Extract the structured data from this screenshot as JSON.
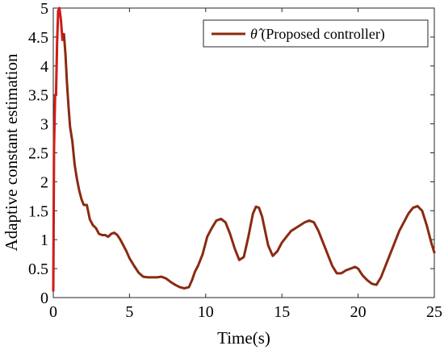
{
  "chart_data": {
    "type": "line",
    "title": "",
    "xlabel": "Time(s)",
    "ylabel": "Adaptive constant estimation",
    "xlim": [
      0,
      25
    ],
    "ylim": [
      0,
      5
    ],
    "xticks": [
      "0",
      "5",
      "10",
      "15",
      "20",
      "25"
    ],
    "yticks": [
      "0",
      "0.5",
      "1",
      "1.5",
      "2",
      "2.5",
      "3",
      "3.5",
      "4",
      "4.5",
      "5"
    ],
    "grid": false,
    "legend_position": "top-right",
    "series": [
      {
        "name": "θ̂ (Proposed controller)",
        "legend_symbol": "θ̂",
        "legend_text": " (Proposed controller)",
        "color": "#8b2a12",
        "initial_spike_color": "#e8141c",
        "x": [
          0.0,
          0.05,
          0.12,
          0.18,
          0.25,
          0.32,
          0.4,
          0.5,
          0.6,
          0.7,
          0.8,
          0.9,
          1.0,
          1.1,
          1.25,
          1.4,
          1.55,
          1.7,
          1.85,
          2.0,
          2.2,
          2.4,
          2.6,
          2.8,
          3.0,
          3.2,
          3.4,
          3.6,
          3.8,
          4.0,
          4.2,
          4.4,
          4.6,
          4.8,
          5.0,
          5.3,
          5.6,
          5.9,
          6.2,
          6.5,
          6.8,
          7.1,
          7.4,
          7.7,
          8.0,
          8.3,
          8.6,
          8.9,
          9.1,
          9.3,
          9.5,
          9.8,
          10.1,
          10.4,
          10.7,
          11.0,
          11.3,
          11.6,
          11.9,
          12.2,
          12.5,
          12.8,
          13.1,
          13.3,
          13.5,
          13.7,
          13.9,
          14.1,
          14.4,
          14.7,
          15.0,
          15.3,
          15.6,
          15.9,
          16.2,
          16.5,
          16.8,
          17.1,
          17.4,
          17.7,
          18.0,
          18.3,
          18.6,
          18.9,
          19.2,
          19.5,
          19.8,
          20.0,
          20.3,
          20.6,
          20.9,
          21.2,
          21.5,
          21.8,
          22.1,
          22.4,
          22.7,
          23.0,
          23.3,
          23.6,
          23.9,
          24.2,
          24.5,
          24.8,
          25.0
        ],
        "y": [
          0.12,
          2.6,
          3.5,
          3.5,
          4.4,
          4.95,
          5.0,
          4.8,
          4.45,
          4.55,
          4.2,
          3.7,
          3.3,
          2.95,
          2.7,
          2.3,
          2.05,
          1.85,
          1.7,
          1.6,
          1.6,
          1.35,
          1.25,
          1.2,
          1.1,
          1.08,
          1.08,
          1.05,
          1.1,
          1.12,
          1.08,
          1.0,
          0.9,
          0.8,
          0.68,
          0.55,
          0.43,
          0.36,
          0.35,
          0.35,
          0.35,
          0.36,
          0.33,
          0.27,
          0.22,
          0.18,
          0.16,
          0.18,
          0.3,
          0.45,
          0.55,
          0.75,
          1.05,
          1.2,
          1.33,
          1.36,
          1.3,
          1.1,
          0.85,
          0.65,
          0.7,
          1.05,
          1.45,
          1.57,
          1.55,
          1.4,
          1.15,
          0.9,
          0.72,
          0.8,
          0.95,
          1.05,
          1.15,
          1.2,
          1.25,
          1.3,
          1.33,
          1.3,
          1.15,
          0.95,
          0.75,
          0.55,
          0.42,
          0.42,
          0.47,
          0.5,
          0.53,
          0.5,
          0.38,
          0.3,
          0.24,
          0.22,
          0.35,
          0.55,
          0.75,
          0.95,
          1.15,
          1.3,
          1.45,
          1.55,
          1.58,
          1.5,
          1.25,
          0.95,
          0.78
        ]
      }
    ]
  }
}
